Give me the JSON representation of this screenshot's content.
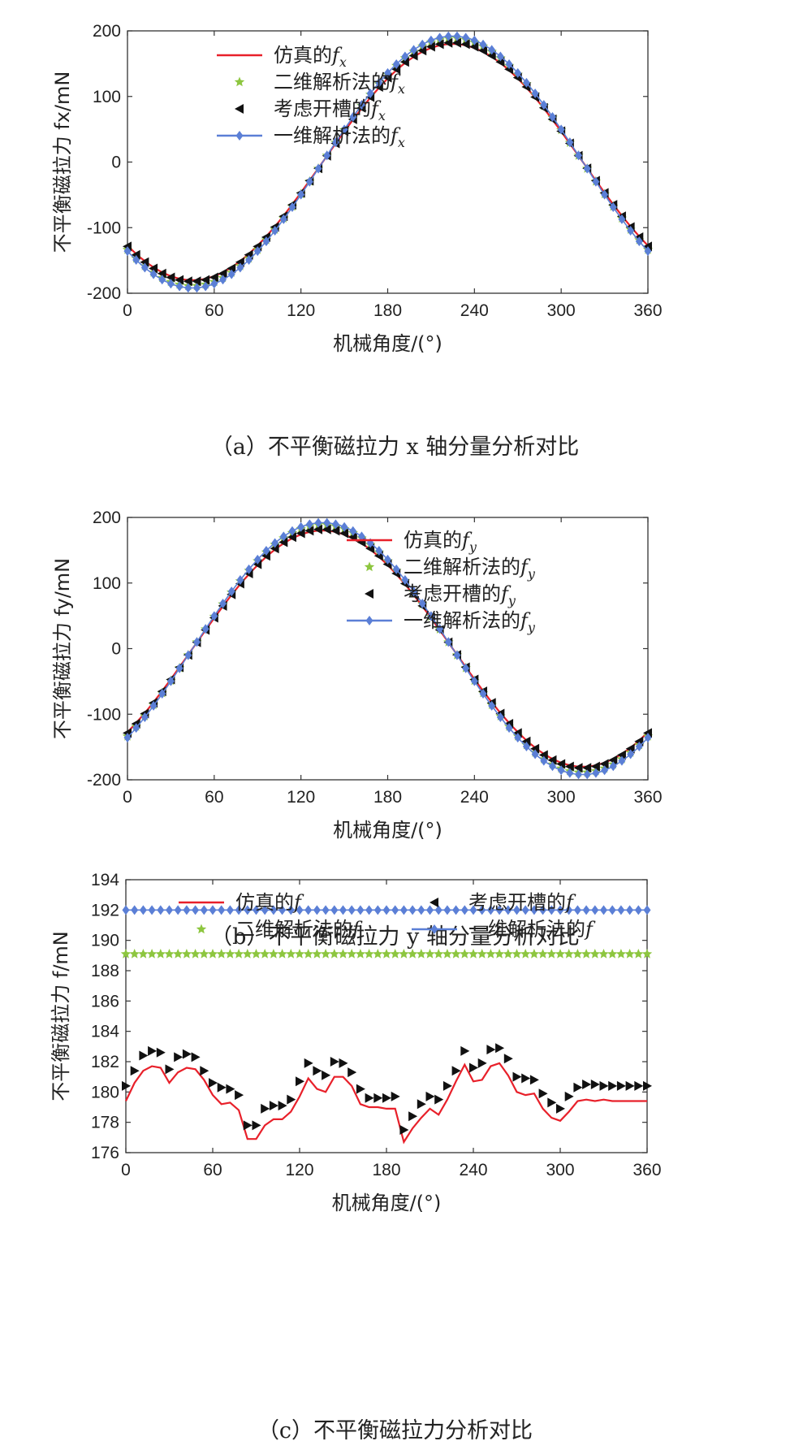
{
  "chart_data": [
    {
      "type": "line",
      "panel_caption": "（a）不平衡磁拉力 x 轴分量分析对比",
      "xlabel": "机械角度/(°)",
      "ylabel": "不平衡磁拉力 fx/mN",
      "xlim": [
        0,
        360
      ],
      "ylim": [
        -200,
        200
      ],
      "xticks": [
        "0",
        "60",
        "120",
        "180",
        "240",
        "300",
        "360"
      ],
      "yticks": [
        "-200",
        "-100",
        "0",
        "100",
        "200"
      ],
      "legend_position": "top-left",
      "series": [
        {
          "name": "仿真的fx",
          "style": "line",
          "color": "#e8202a",
          "model": {
            "kind": "sin",
            "amp": 180,
            "phase_deg": 135,
            "offset": 0
          }
        },
        {
          "name": "二维解析法的fx",
          "style": "star",
          "color": "#8dc63f",
          "model": {
            "kind": "sin",
            "amp": 189,
            "phase_deg": 135,
            "offset": 0
          }
        },
        {
          "name": "考虑开槽的fx",
          "style": "tri-left",
          "color": "#111111",
          "model": {
            "kind": "sin",
            "amp": 182,
            "phase_deg": 135,
            "offset": 0
          }
        },
        {
          "name": "一维解析法的fx",
          "style": "line-diamond",
          "color": "#5b7fd6",
          "model": {
            "kind": "sin",
            "amp": 192,
            "phase_deg": 135,
            "offset": 0
          }
        }
      ]
    },
    {
      "type": "line",
      "panel_caption": "（b）不平衡磁拉力 y 轴分量分析对比",
      "xlabel": "机械角度/(°)",
      "ylabel": "不平衡磁拉力 fy/mN",
      "xlim": [
        0,
        360
      ],
      "ylim": [
        -200,
        200
      ],
      "xticks": [
        "0",
        "60",
        "120",
        "180",
        "240",
        "300",
        "360"
      ],
      "yticks": [
        "-200",
        "-100",
        "0",
        "100",
        "200"
      ],
      "legend_position": "top-right",
      "series": [
        {
          "name": "仿真的fy",
          "style": "line",
          "color": "#e8202a",
          "model": {
            "kind": "sin",
            "amp": 180,
            "phase_deg": 45,
            "offset": 0
          }
        },
        {
          "name": "二维解析法的fy",
          "style": "star",
          "color": "#8dc63f",
          "model": {
            "kind": "sin",
            "amp": 189,
            "phase_deg": 45,
            "offset": 0
          }
        },
        {
          "name": "考虑开槽的fy",
          "style": "tri-left",
          "color": "#111111",
          "model": {
            "kind": "sin",
            "amp": 182,
            "phase_deg": 45,
            "offset": 0
          }
        },
        {
          "name": "一维解析法的fy",
          "style": "line-diamond",
          "color": "#5b7fd6",
          "model": {
            "kind": "sin",
            "amp": 192,
            "phase_deg": 45,
            "offset": 0
          }
        }
      ]
    },
    {
      "type": "line",
      "panel_caption": "（c）不平衡磁拉力分析对比",
      "xlabel": "机械角度/(°)",
      "ylabel": "不平衡磁拉力 f/mN",
      "xlim": [
        0,
        360
      ],
      "ylim": [
        176,
        194
      ],
      "xticks": [
        "0",
        "60",
        "120",
        "180",
        "240",
        "300",
        "360"
      ],
      "yticks": [
        "176",
        "178",
        "180",
        "182",
        "184",
        "186",
        "188",
        "190",
        "192",
        "194"
      ],
      "legend_position": "middle",
      "x": [
        0,
        6,
        12,
        18,
        24,
        30,
        36,
        42,
        48,
        54,
        60,
        66,
        72,
        78,
        84,
        90,
        96,
        102,
        108,
        114,
        120,
        126,
        132,
        138,
        144,
        150,
        156,
        162,
        168,
        174,
        180,
        186,
        192,
        198,
        204,
        210,
        216,
        222,
        228,
        234,
        240,
        246,
        252,
        258,
        264,
        270,
        276,
        282,
        288,
        294,
        300,
        306,
        312,
        318,
        324,
        330,
        336,
        342,
        348,
        354,
        360
      ],
      "series": [
        {
          "name": "仿真的f",
          "style": "line",
          "color": "#e8202a",
          "values": [
            179.4,
            180.6,
            181.4,
            181.7,
            181.6,
            180.6,
            181.3,
            181.6,
            181.5,
            180.8,
            179.8,
            179.2,
            179.3,
            178.8,
            176.9,
            176.9,
            177.8,
            178.2,
            178.2,
            178.7,
            179.7,
            180.9,
            180.2,
            180.0,
            181.0,
            181.0,
            180.4,
            179.2,
            179.0,
            179.0,
            178.9,
            178.9,
            176.7,
            177.6,
            178.3,
            178.9,
            178.5,
            179.5,
            180.7,
            181.8,
            180.7,
            180.8,
            181.7,
            181.9,
            181.1,
            180.0,
            179.8,
            179.9,
            178.9,
            178.3,
            178.1,
            178.7,
            179.4,
            179.5,
            179.4,
            179.5,
            179.4,
            179.4,
            179.4,
            179.4,
            179.4
          ]
        },
        {
          "name": "二维解析法的f",
          "style": "star",
          "color": "#8dc63f",
          "const": 189.1
        },
        {
          "name": "考虑开槽的f",
          "style": "tri-left",
          "color": "#111111",
          "values": [
            180.4,
            181.4,
            182.4,
            182.7,
            182.6,
            181.5,
            182.3,
            182.5,
            182.3,
            181.4,
            180.6,
            180.3,
            180.2,
            179.8,
            177.8,
            177.8,
            178.9,
            179.1,
            179.1,
            179.5,
            180.7,
            181.9,
            181.4,
            181.1,
            182.0,
            181.9,
            181.3,
            180.2,
            179.6,
            179.6,
            179.6,
            179.7,
            177.5,
            178.4,
            179.2,
            179.7,
            179.5,
            180.4,
            181.4,
            182.7,
            181.6,
            181.9,
            182.8,
            182.9,
            182.2,
            181.0,
            180.9,
            180.8,
            179.9,
            179.3,
            178.9,
            179.7,
            180.3,
            180.5,
            180.5,
            180.4,
            180.4,
            180.4,
            180.4,
            180.4,
            180.4
          ]
        },
        {
          "name": "一维解析法的f",
          "style": "line-diamond",
          "color": "#5b7fd6",
          "const": 192.0
        }
      ]
    }
  ]
}
